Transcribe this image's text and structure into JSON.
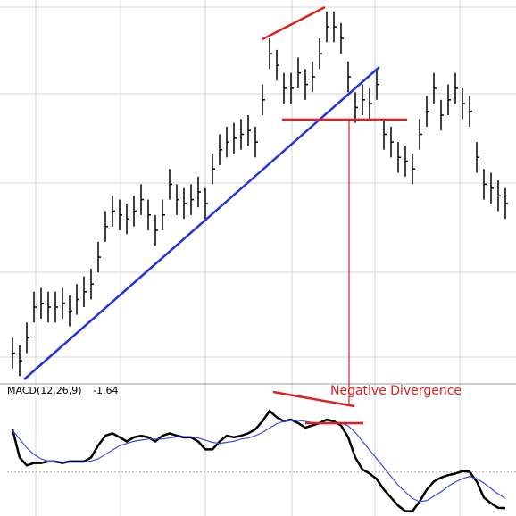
{
  "chart_data": [
    {
      "type": "ohlc",
      "ylim": [
        0,
        100
      ],
      "color": "#000000",
      "high": [
        12,
        10,
        16,
        24,
        25,
        24,
        24,
        25,
        23,
        26,
        28,
        30,
        37,
        45,
        49,
        48,
        47,
        49,
        52,
        48,
        44,
        48,
        56,
        52,
        51,
        52,
        54,
        51,
        60,
        65,
        67,
        68,
        69,
        70,
        67,
        78,
        90,
        87,
        81,
        81,
        85,
        82,
        84,
        90,
        97,
        97,
        94,
        84,
        76,
        78,
        77,
        82,
        69,
        67,
        63,
        62,
        60,
        69,
        75,
        81,
        74,
        78,
        81,
        77,
        75,
        63,
        56,
        55,
        53,
        51
      ],
      "low": [
        4,
        2,
        8,
        16,
        17,
        16,
        16,
        17,
        15,
        18,
        20,
        22,
        29,
        37,
        41,
        40,
        39,
        41,
        44,
        40,
        36,
        40,
        48,
        44,
        43,
        44,
        46,
        43,
        52,
        57,
        59,
        60,
        61,
        62,
        59,
        70,
        82,
        79,
        73,
        73,
        77,
        74,
        76,
        82,
        89,
        89,
        86,
        76,
        68,
        70,
        69,
        74,
        61,
        59,
        55,
        54,
        52,
        61,
        67,
        73,
        66,
        70,
        73,
        69,
        67,
        55,
        48,
        47,
        45,
        43
      ],
      "close": [
        8,
        6,
        12,
        20,
        21,
        20,
        20,
        21,
        19,
        22,
        24,
        26,
        33,
        41,
        45,
        44,
        43,
        45,
        48,
        44,
        40,
        44,
        52,
        48,
        47,
        48,
        50,
        47,
        56,
        61,
        63,
        64,
        65,
        66,
        63,
        74,
        86,
        83,
        77,
        77,
        81,
        78,
        80,
        86,
        93,
        93,
        90,
        80,
        72,
        74,
        73,
        78,
        65,
        63,
        59,
        58,
        56,
        65,
        71,
        77,
        70,
        74,
        77,
        73,
        71,
        59,
        52,
        51,
        49,
        47
      ]
    },
    {
      "type": "line",
      "title": "MACD(12,26,9)",
      "current": -1.64,
      "annotation": "Negative Divergence",
      "ylim": [
        -2,
        3.4
      ],
      "series": [
        {
          "color": "#000000",
          "values": [
            1.94,
            0.66,
            0.3,
            0.41,
            0.41,
            0.48,
            0.48,
            0.41,
            0.48,
            0.48,
            0.48,
            0.66,
            1.21,
            1.65,
            1.76,
            1.58,
            1.39,
            1.58,
            1.65,
            1.58,
            1.39,
            1.65,
            1.76,
            1.65,
            1.58,
            1.58,
            1.39,
            1.03,
            1.03,
            1.39,
            1.65,
            1.58,
            1.65,
            1.76,
            1.94,
            2.31,
            2.78,
            2.49,
            2.31,
            2.38,
            2.23,
            2.02,
            2.12,
            2.23,
            2.38,
            2.31,
            2.12,
            1.58,
            0.66,
            0.12,
            -0.07,
            -0.32,
            -0.8,
            -1.16,
            -1.53,
            -1.78,
            -1.78,
            -1.34,
            -0.8,
            -0.43,
            -0.25,
            -0.14,
            -0.07,
            0.04,
            0.01,
            -0.43,
            -1.16,
            -1.42,
            -1.63,
            -1.64
          ]
        },
        {
          "color": "#3a4fe0",
          "values": [
            1.9,
            1.5,
            1.1,
            0.8,
            0.6,
            0.5,
            0.5,
            0.45,
            0.45,
            0.45,
            0.45,
            0.5,
            0.6,
            0.8,
            1.0,
            1.2,
            1.3,
            1.4,
            1.45,
            1.5,
            1.5,
            1.5,
            1.55,
            1.6,
            1.6,
            1.6,
            1.55,
            1.45,
            1.35,
            1.3,
            1.35,
            1.4,
            1.5,
            1.55,
            1.65,
            1.8,
            2.0,
            2.2,
            2.3,
            2.35,
            2.35,
            2.3,
            2.25,
            2.2,
            2.2,
            2.25,
            2.25,
            2.1,
            1.8,
            1.4,
            1.0,
            0.6,
            0.2,
            -0.2,
            -0.6,
            -0.9,
            -1.2,
            -1.35,
            -1.3,
            -1.1,
            -0.9,
            -0.65,
            -0.45,
            -0.3,
            -0.2,
            -0.3,
            -0.5,
            -0.75,
            -1.0,
            -1.2
          ]
        }
      ]
    }
  ]
}
